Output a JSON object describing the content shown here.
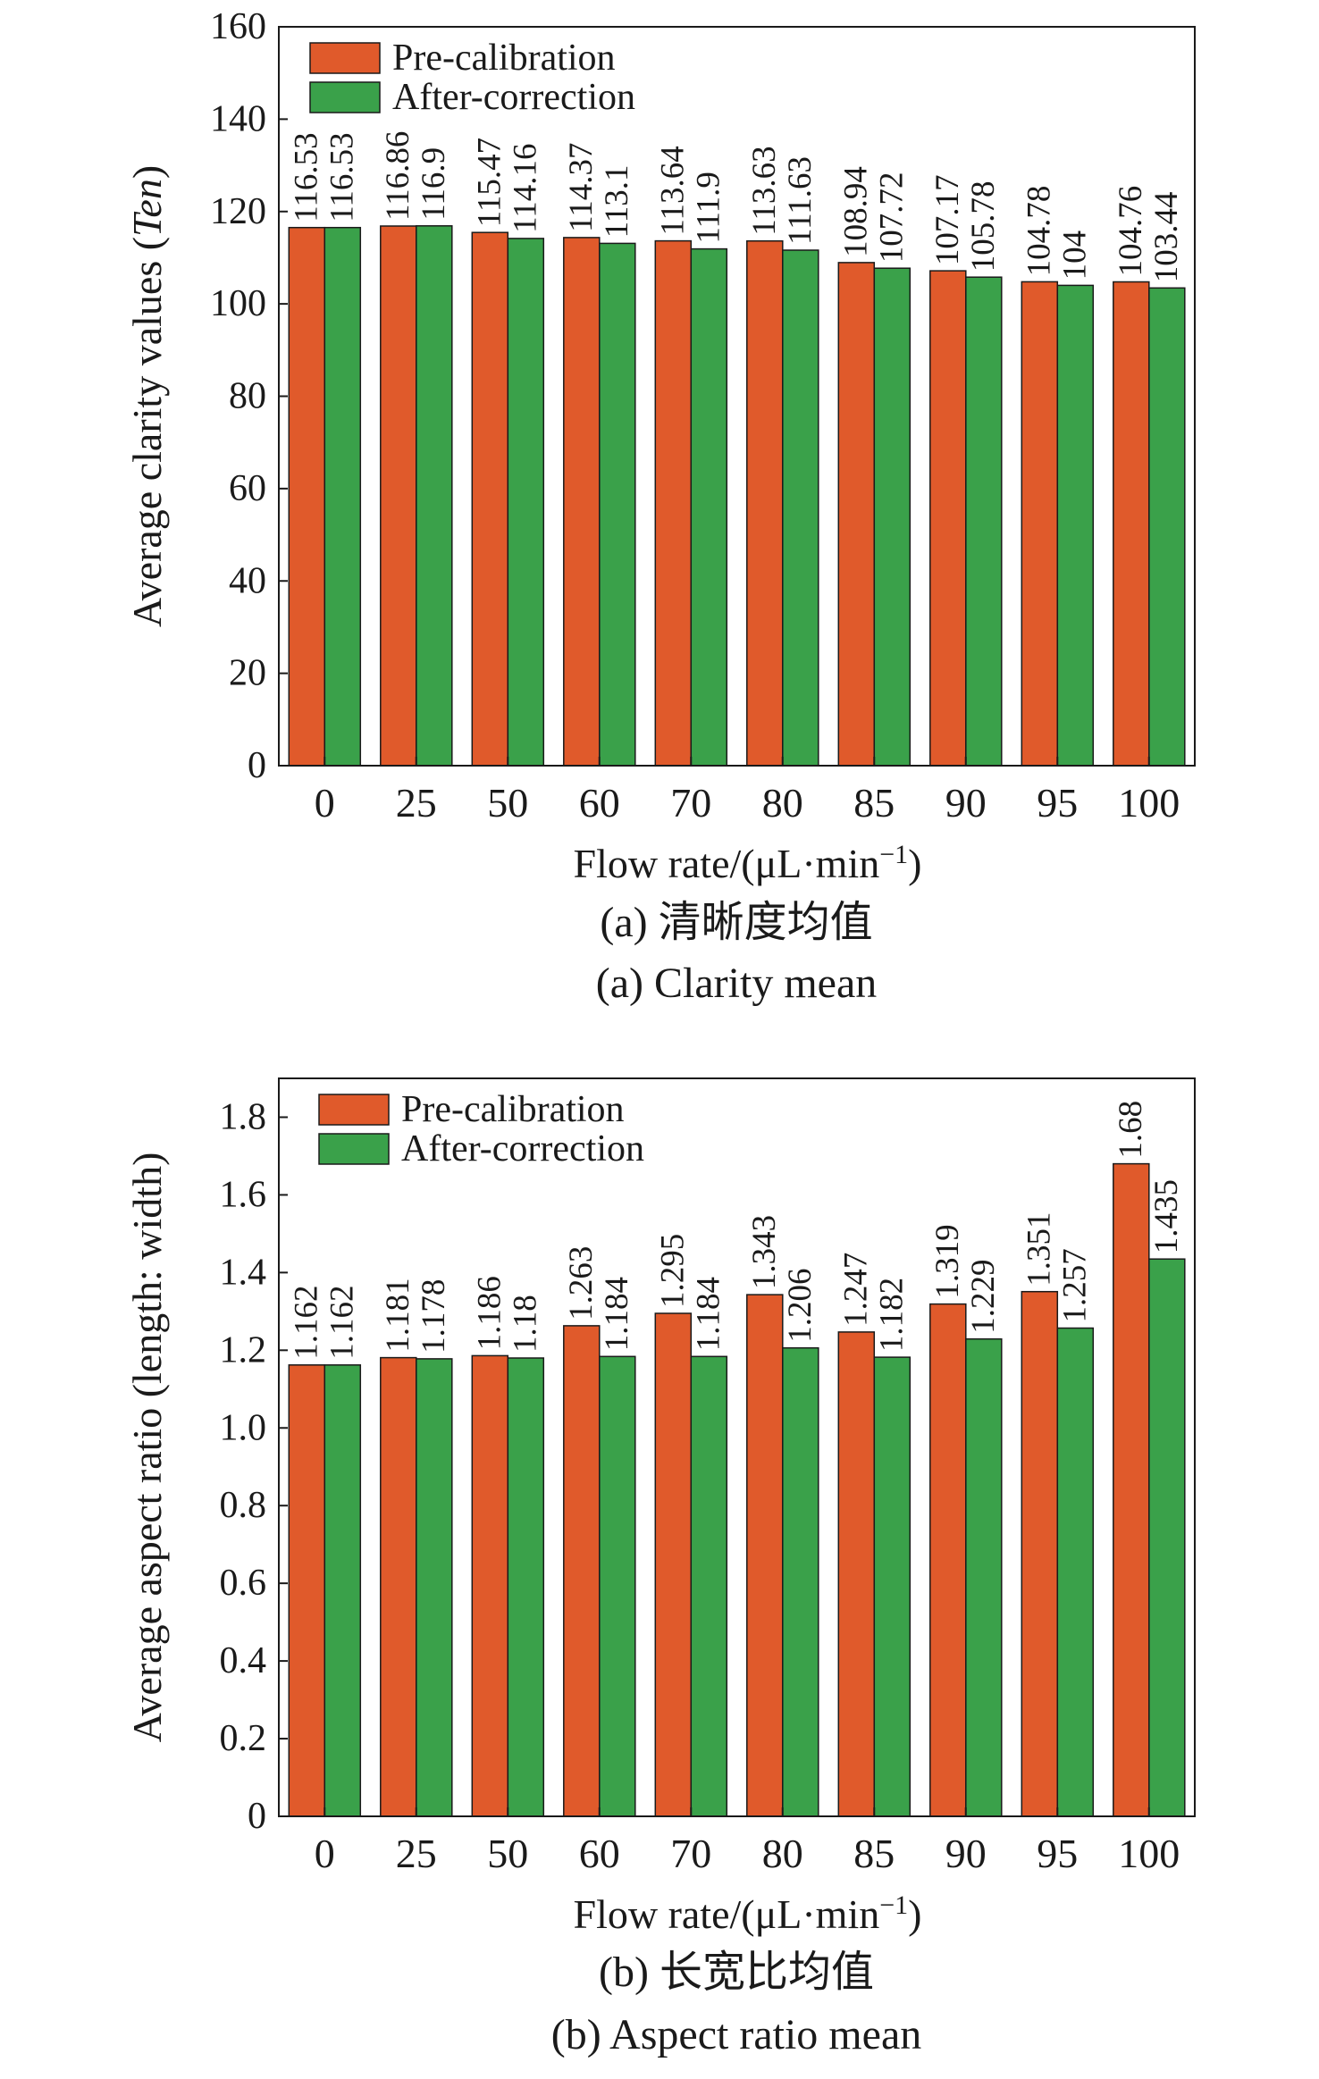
{
  "chart_data": [
    {
      "type": "bar",
      "categories": [
        "0",
        "25",
        "50",
        "60",
        "70",
        "80",
        "85",
        "90",
        "95",
        "100"
      ],
      "series": [
        {
          "name": "Pre-calibration",
          "color": "#e05a2b",
          "values": [
            116.53,
            116.86,
            115.47,
            114.37,
            113.64,
            113.63,
            108.94,
            107.17,
            104.78,
            104.76
          ],
          "labels": [
            "116.53",
            "116.86",
            "115.47",
            "114.37",
            "113.64",
            "113.63",
            "108.94",
            "107.17",
            "104.78",
            "104.76"
          ]
        },
        {
          "name": "After-correction",
          "color": "#3aa14a",
          "values": [
            116.53,
            116.9,
            114.16,
            113.1,
            111.9,
            111.63,
            107.72,
            105.78,
            104,
            103.44
          ],
          "labels": [
            "116.53",
            "116.9",
            "114.16",
            "113.1",
            "111.9",
            "111.63",
            "107.72",
            "105.78",
            "104",
            "103.44"
          ]
        }
      ],
      "ylim": [
        0,
        160
      ],
      "yticks": [
        "0",
        "20",
        "40",
        "60",
        "80",
        "100",
        "120",
        "140",
        "160"
      ],
      "ylabel_prefix": "Average clarity values (",
      "ylabel_italic": "Ten",
      "ylabel_suffix": ")",
      "xlabel_main": "Flow rate/(μL·min",
      "xlabel_sup": "−1",
      "xlabel_close": ")",
      "caption_cn": "(a) 清晰度均值",
      "caption_en": "(a) Clarity mean",
      "legend_position": "top-left",
      "grid": false
    },
    {
      "type": "bar",
      "categories": [
        "0",
        "25",
        "50",
        "60",
        "70",
        "80",
        "85",
        "90",
        "95",
        "100"
      ],
      "series": [
        {
          "name": "Pre-calibration",
          "color": "#e05a2b",
          "values": [
            1.162,
            1.181,
            1.186,
            1.263,
            1.295,
            1.343,
            1.247,
            1.319,
            1.351,
            1.68
          ],
          "labels": [
            "1.162",
            "1.181",
            "1.186",
            "1.263",
            "1.295",
            "1.343",
            "1.247",
            "1.319",
            "1.351",
            "1.68"
          ]
        },
        {
          "name": "After-correction",
          "color": "#3aa14a",
          "values": [
            1.162,
            1.178,
            1.18,
            1.184,
            1.184,
            1.206,
            1.182,
            1.229,
            1.257,
            1.435
          ],
          "labels": [
            "1.162",
            "1.178",
            "1.18",
            "1.184",
            "1.184",
            "1.206",
            "1.182",
            "1.229",
            "1.257",
            "1.435"
          ]
        }
      ],
      "ylim": [
        0,
        1.9
      ],
      "yticks": [
        "0",
        "0.2",
        "0.4",
        "0.6",
        "0.8",
        "1.0",
        "1.2",
        "1.4",
        "1.6",
        "1.8"
      ],
      "ylabel_prefix": "Average aspect ratio (length: width)",
      "ylabel_italic": "",
      "ylabel_suffix": "",
      "xlabel_main": "Flow rate/(μL·min",
      "xlabel_sup": "−1",
      "xlabel_close": ")",
      "caption_cn": "(b) 长宽比均值",
      "caption_en": "(b) Aspect ratio mean",
      "legend_position": "top-left",
      "grid": false
    }
  ]
}
